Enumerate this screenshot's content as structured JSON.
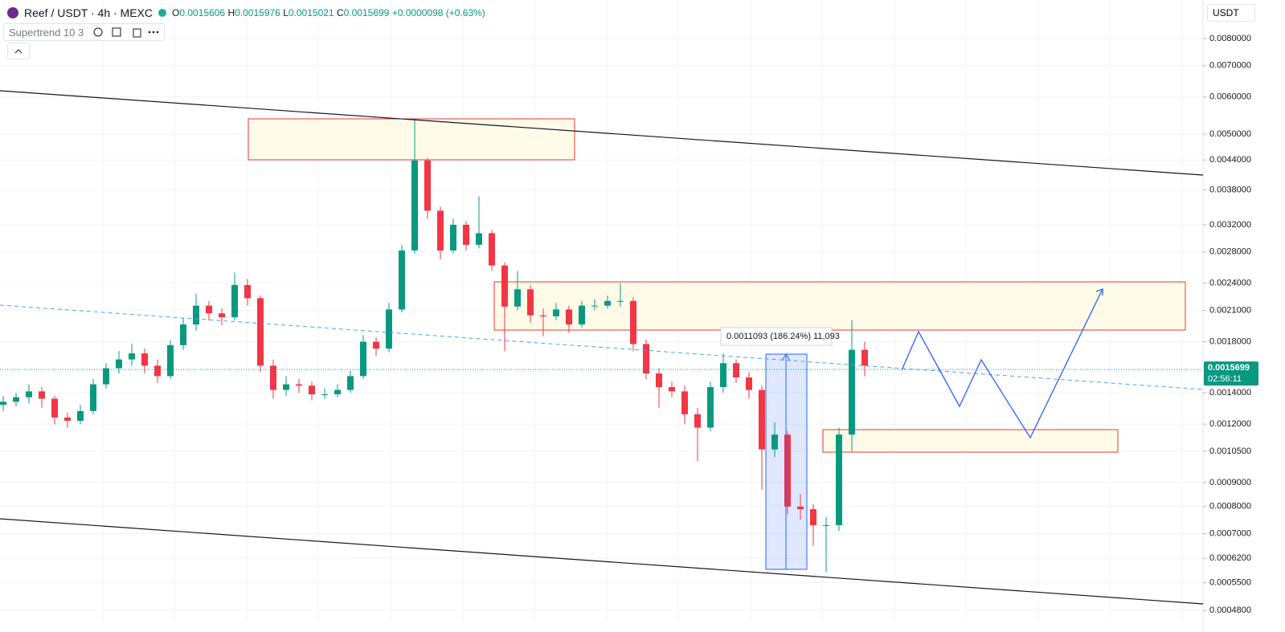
{
  "header": {
    "symbol": "Reef / USDT · 4h · MEXC",
    "ohlc": [
      {
        "label": "O",
        "value": "0.0015606"
      },
      {
        "label": "H",
        "value": "0.0015976"
      },
      {
        "label": "L",
        "value": "0.0015021"
      },
      {
        "label": "C",
        "value": "0.0015699"
      }
    ],
    "change": "+0.0000098 (+0.63%)"
  },
  "indicator": "Supertrend 10 3",
  "currency": "USDT",
  "measure_label": "0.0011093 (186.24%) 11,093",
  "chart_data": {
    "type": "candlestick",
    "yscale": "log",
    "grid": true,
    "ylim": [
      0.000458,
      0.00967
    ],
    "yticks": [
      {
        "value": 0.008,
        "label": "0.0080000"
      },
      {
        "value": 0.007,
        "label": "0.0070000"
      },
      {
        "value": 0.006,
        "label": "0.0060000"
      },
      {
        "value": 0.005,
        "label": "0.0050000"
      },
      {
        "value": 0.0044,
        "label": "0.0044000"
      },
      {
        "value": 0.0038,
        "label": "0.0038000"
      },
      {
        "value": 0.0032,
        "label": "0.0032000"
      },
      {
        "value": 0.0028,
        "label": "0.0028000"
      },
      {
        "value": 0.0024,
        "label": "0.0024000"
      },
      {
        "value": 0.0021,
        "label": "0.0021000"
      },
      {
        "value": 0.0018,
        "label": "0.0018000"
      },
      {
        "value": 0.0014,
        "label": "0.0014000"
      },
      {
        "value": 0.0012,
        "label": "0.0012000"
      },
      {
        "value": 0.00105,
        "label": "0.0010500"
      },
      {
        "value": 0.0009,
        "label": "0.0009000"
      },
      {
        "value": 0.0008,
        "label": "0.0008000"
      },
      {
        "value": 0.0007,
        "label": "0.0007000"
      },
      {
        "value": 0.00062,
        "label": "0.0006200"
      },
      {
        "value": 0.00055,
        "label": "0.0005500"
      },
      {
        "value": 0.00048,
        "label": "0.0004800"
      }
    ],
    "up_color": "#089981",
    "down_color": "#f23645",
    "open": [
      0.00132,
      0.00134,
      0.00137,
      0.00141,
      0.00136,
      0.00124,
      0.00122,
      0.00128,
      0.00146,
      0.00158,
      0.00165,
      0.0017,
      0.0016,
      0.00152,
      0.00177,
      0.00196,
      0.00215,
      0.00207,
      0.00203,
      0.00238,
      0.00223,
      0.0016,
      0.00142,
      0.00146,
      0.00145,
      0.00139,
      0.00139,
      0.00142,
      0.00152,
      0.0018,
      0.00174,
      0.00211,
      0.00282,
      0.00439,
      0.00343,
      0.00282,
      0.0032,
      0.0029,
      0.00307,
      0.00262,
      0.00214,
      0.00233,
      0.00205,
      0.00204,
      0.00211,
      0.00196,
      0.00215,
      0.00215,
      0.0022,
      0.0022,
      0.00178,
      0.00154,
      0.00144,
      0.00141,
      0.00126,
      0.00118,
      0.00144,
      0.00162,
      0.00151,
      0.00142,
      0.00106,
      0.00114,
      0.0008,
      0.00079,
      0.00073,
      0.00073,
      0.00114,
      0.00173
    ],
    "high": [
      0.00138,
      0.0014,
      0.00146,
      0.00144,
      0.00138,
      0.00127,
      0.00132,
      0.0015,
      0.00162,
      0.00172,
      0.00178,
      0.00174,
      0.00165,
      0.00181,
      0.00202,
      0.00228,
      0.0022,
      0.00212,
      0.00253,
      0.00245,
      0.00226,
      0.00165,
      0.00152,
      0.0015,
      0.00148,
      0.00143,
      0.00146,
      0.00156,
      0.00186,
      0.00184,
      0.00218,
      0.0029,
      0.00535,
      0.00445,
      0.0035,
      0.0033,
      0.00326,
      0.00368,
      0.00312,
      0.00266,
      0.00255,
      0.00238,
      0.00212,
      0.00218,
      0.00215,
      0.0022,
      0.00222,
      0.00226,
      0.0024,
      0.00224,
      0.00182,
      0.00158,
      0.00148,
      0.00145,
      0.0013,
      0.00148,
      0.0017,
      0.00165,
      0.00155,
      0.00145,
      0.00121,
      0.00116,
      0.00085,
      0.00081,
      0.00076,
      0.00118,
      0.002,
      0.0018
    ],
    "low": [
      0.00128,
      0.00131,
      0.00133,
      0.0013,
      0.0012,
      0.00118,
      0.0012,
      0.00126,
      0.00143,
      0.00154,
      0.0016,
      0.00154,
      0.00147,
      0.0015,
      0.00173,
      0.0019,
      0.002,
      0.00195,
      0.002,
      0.00215,
      0.00155,
      0.00136,
      0.00138,
      0.0014,
      0.00135,
      0.00136,
      0.00137,
      0.0014,
      0.0015,
      0.00168,
      0.00171,
      0.00208,
      0.00278,
      0.0033,
      0.0027,
      0.00278,
      0.00282,
      0.00285,
      0.00255,
      0.00172,
      0.0021,
      0.00198,
      0.00185,
      0.002,
      0.00188,
      0.00193,
      0.0021,
      0.00212,
      0.00214,
      0.00172,
      0.0015,
      0.0013,
      0.00137,
      0.0012,
      0.001,
      0.00116,
      0.0014,
      0.00147,
      0.00136,
      0.00087,
      0.00102,
      0.00077,
      0.00075,
      0.00066,
      0.00058,
      0.00071,
      0.00105,
      0.00152
    ],
    "close": [
      0.00134,
      0.00137,
      0.00141,
      0.00136,
      0.00124,
      0.00122,
      0.00128,
      0.00146,
      0.00158,
      0.00165,
      0.0017,
      0.0016,
      0.00152,
      0.00177,
      0.00196,
      0.00215,
      0.00207,
      0.00203,
      0.00238,
      0.00223,
      0.0016,
      0.00142,
      0.00146,
      0.00145,
      0.00139,
      0.00139,
      0.00142,
      0.00152,
      0.0018,
      0.00174,
      0.00211,
      0.00282,
      0.00439,
      0.00343,
      0.00282,
      0.0032,
      0.0029,
      0.00307,
      0.00262,
      0.00214,
      0.00233,
      0.00205,
      0.00204,
      0.00211,
      0.00196,
      0.00215,
      0.00215,
      0.0022,
      0.0022,
      0.00178,
      0.00154,
      0.00144,
      0.00141,
      0.00126,
      0.00118,
      0.00144,
      0.00162,
      0.00151,
      0.00142,
      0.00106,
      0.00114,
      0.0008,
      0.00079,
      0.00073,
      0.00073,
      0.00114,
      0.00173,
      0.0016
    ],
    "last_price": 0.0015699,
    "countdown": "02:56:11"
  }
}
